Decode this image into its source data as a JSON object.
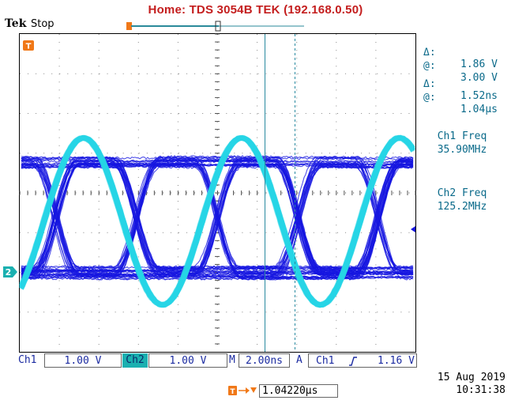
{
  "header": {
    "title": "Home:  TDS 3054B   TEK  (192.168.0.50)",
    "brand": "Tek",
    "acq_state": "Stop"
  },
  "cursors": {
    "voltage_delta_label": "Δ:",
    "voltage_delta": "1.86 V",
    "voltage_at_label": "@:",
    "voltage_at": "3.00 V",
    "time_delta_label": "Δ:",
    "time_delta": "1.52ns",
    "time_at_label": "@:",
    "time_at": "1.04µs"
  },
  "measurements": [
    {
      "label": "Ch1 Freq",
      "value": "35.90MHz"
    },
    {
      "label": "Ch2 Freq",
      "value": "125.2MHz"
    }
  ],
  "markers": {
    "ch2_marker": "2",
    "trigger_marker": "T"
  },
  "status_bar": {
    "ch1_label": "Ch1",
    "ch1_scale": "1.00 V",
    "ch2_label": "Ch2",
    "ch2_scale": "1.00 V",
    "timebase_label": "M",
    "timebase": "2.00ns",
    "trigger_mode": "A",
    "trigger_source": "Ch1",
    "trigger_slope_icon": "rising-edge-icon",
    "trigger_level": "1.16 V"
  },
  "trigger_position": "1.04220µs",
  "date": "15 Aug 2019",
  "time": "10:31:38",
  "colors": {
    "ch1": "#1515e0",
    "ch2": "#26d6e6",
    "title": "#c41e1e",
    "readout": "#0a6a8a",
    "trigger": "#f07818"
  },
  "signals": {
    "ch1_frequency_mhz": 35.9,
    "ch2_frequency_mhz": 125.2,
    "ch1_amplitude_div": 3.05,
    "ch2_amplitude_div": 4.2,
    "time_per_div_ns": 2.0,
    "volts_per_div": 1.0
  }
}
